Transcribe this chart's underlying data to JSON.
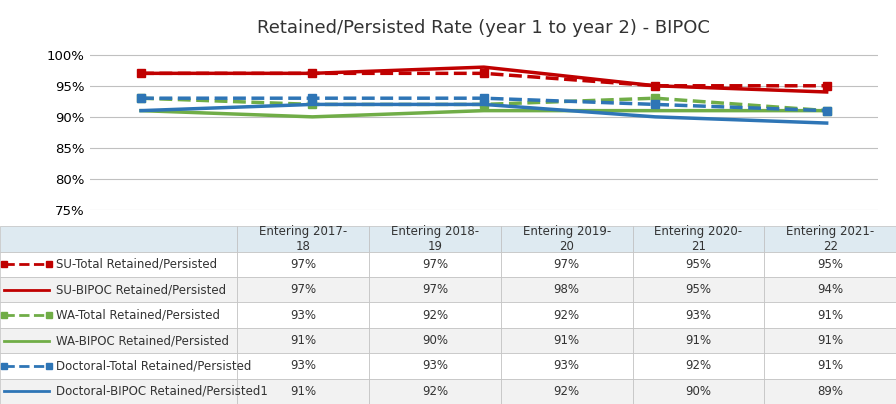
{
  "title": "Retained/Persisted Rate (year 1 to year 2) - BIPOC",
  "x_labels": [
    "Entering 2017-\n18",
    "Entering 2018-\n19",
    "Entering 2019-\n20",
    "Entering 2020-\n21",
    "Entering 2021-\n22"
  ],
  "x_values": [
    0,
    1,
    2,
    3,
    4
  ],
  "series": [
    {
      "label": "SU-Total Retained/Persisted",
      "values": [
        97,
        97,
        97,
        95,
        95
      ],
      "color": "#C00000",
      "linestyle": "dashed",
      "linewidth": 2.5,
      "marker": "s",
      "markersize": 6
    },
    {
      "label": "SU-BIPOC Retained/Persisted",
      "values": [
        97,
        97,
        98,
        95,
        94
      ],
      "color": "#C00000",
      "linestyle": "solid",
      "linewidth": 2.5,
      "marker": "none",
      "markersize": 0
    },
    {
      "label": "WA-Total Retained/Persisted",
      "values": [
        93,
        92,
        92,
        93,
        91
      ],
      "color": "#70AD47",
      "linestyle": "dashed",
      "linewidth": 2.5,
      "marker": "s",
      "markersize": 6
    },
    {
      "label": "WA-BIPOC Retained/Persisted",
      "values": [
        91,
        90,
        91,
        91,
        91
      ],
      "color": "#70AD47",
      "linestyle": "solid",
      "linewidth": 2.5,
      "marker": "none",
      "markersize": 0
    },
    {
      "label": "Doctoral-Total Retained/Persisted",
      "values": [
        93,
        93,
        93,
        92,
        91
      ],
      "color": "#2E75B6",
      "linestyle": "dashed",
      "linewidth": 2.5,
      "marker": "s",
      "markersize": 6
    },
    {
      "label": "Doctoral-BIPOC Retained/Persisted1",
      "values": [
        91,
        92,
        92,
        90,
        89
      ],
      "color": "#2E75B6",
      "linestyle": "solid",
      "linewidth": 2.5,
      "marker": "none",
      "markersize": 0
    }
  ],
  "ylim": [
    75,
    101
  ],
  "yticks": [
    75,
    80,
    85,
    90,
    95,
    100
  ],
  "ytick_labels": [
    "75%",
    "80%",
    "85%",
    "90%",
    "95%",
    "100%"
  ],
  "table_header_bg": "#DEEAF1",
  "table_row_colors": [
    "#FFFFFF",
    "#F2F2F2"
  ],
  "background_color": "#FFFFFF",
  "grid_color": "#C0C0C0",
  "title_fontsize": 13,
  "tick_fontsize": 9.5,
  "table_fontsize": 8.5,
  "legend_label_fontsize": 8.5
}
